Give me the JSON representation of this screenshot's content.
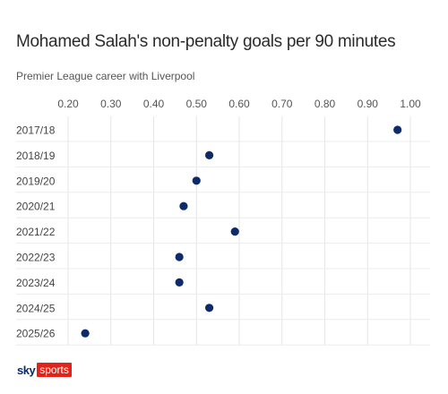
{
  "chart_data": {
    "type": "scatter",
    "title": "Mohamed Salah's non-penalty goals per 90 minutes",
    "subtitle": "Premier League career with Liverpool",
    "xlabel": "",
    "ylabel": "",
    "xlim": [
      0.2,
      1.0
    ],
    "x_ticks": [
      "0.20",
      "0.30",
      "0.40",
      "0.50",
      "0.60",
      "0.70",
      "0.80",
      "0.90",
      "1.00"
    ],
    "categories": [
      "2017/18",
      "2018/19",
      "2019/20",
      "2020/21",
      "2021/22",
      "2022/23",
      "2023/24",
      "2024/25",
      "2025/26"
    ],
    "values": [
      0.97,
      0.53,
      0.5,
      0.47,
      0.59,
      0.46,
      0.46,
      0.53,
      0.24
    ],
    "grid": true,
    "marker_color": "#0d2a6b"
  },
  "branding": {
    "sky": "sky",
    "sports": "sports"
  },
  "colors": {
    "brand_blue": "#0a2a6e",
    "brand_red": "#e2231a"
  }
}
